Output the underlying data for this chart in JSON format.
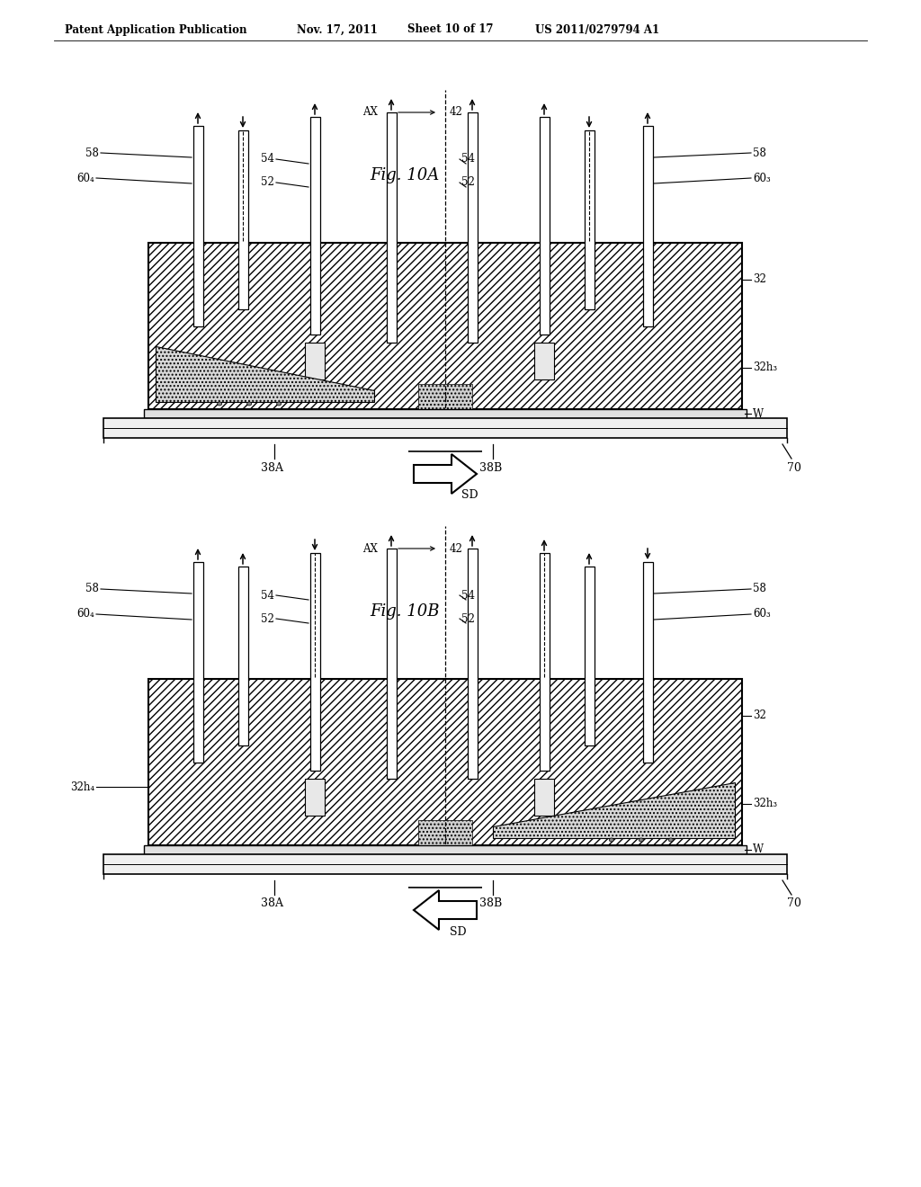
{
  "bg": "#ffffff",
  "lc": "#000000",
  "hatch_main": "////",
  "hatch_stip": "....",
  "fig_a_title": "Fig. 10A",
  "fig_b_title": "Fig. 10B",
  "header_left": "Patent Application Publication",
  "header_mid1": "Nov. 17, 2011",
  "header_mid2": "Sheet 10 of 17",
  "header_right": "US 2011/0279794 A1"
}
